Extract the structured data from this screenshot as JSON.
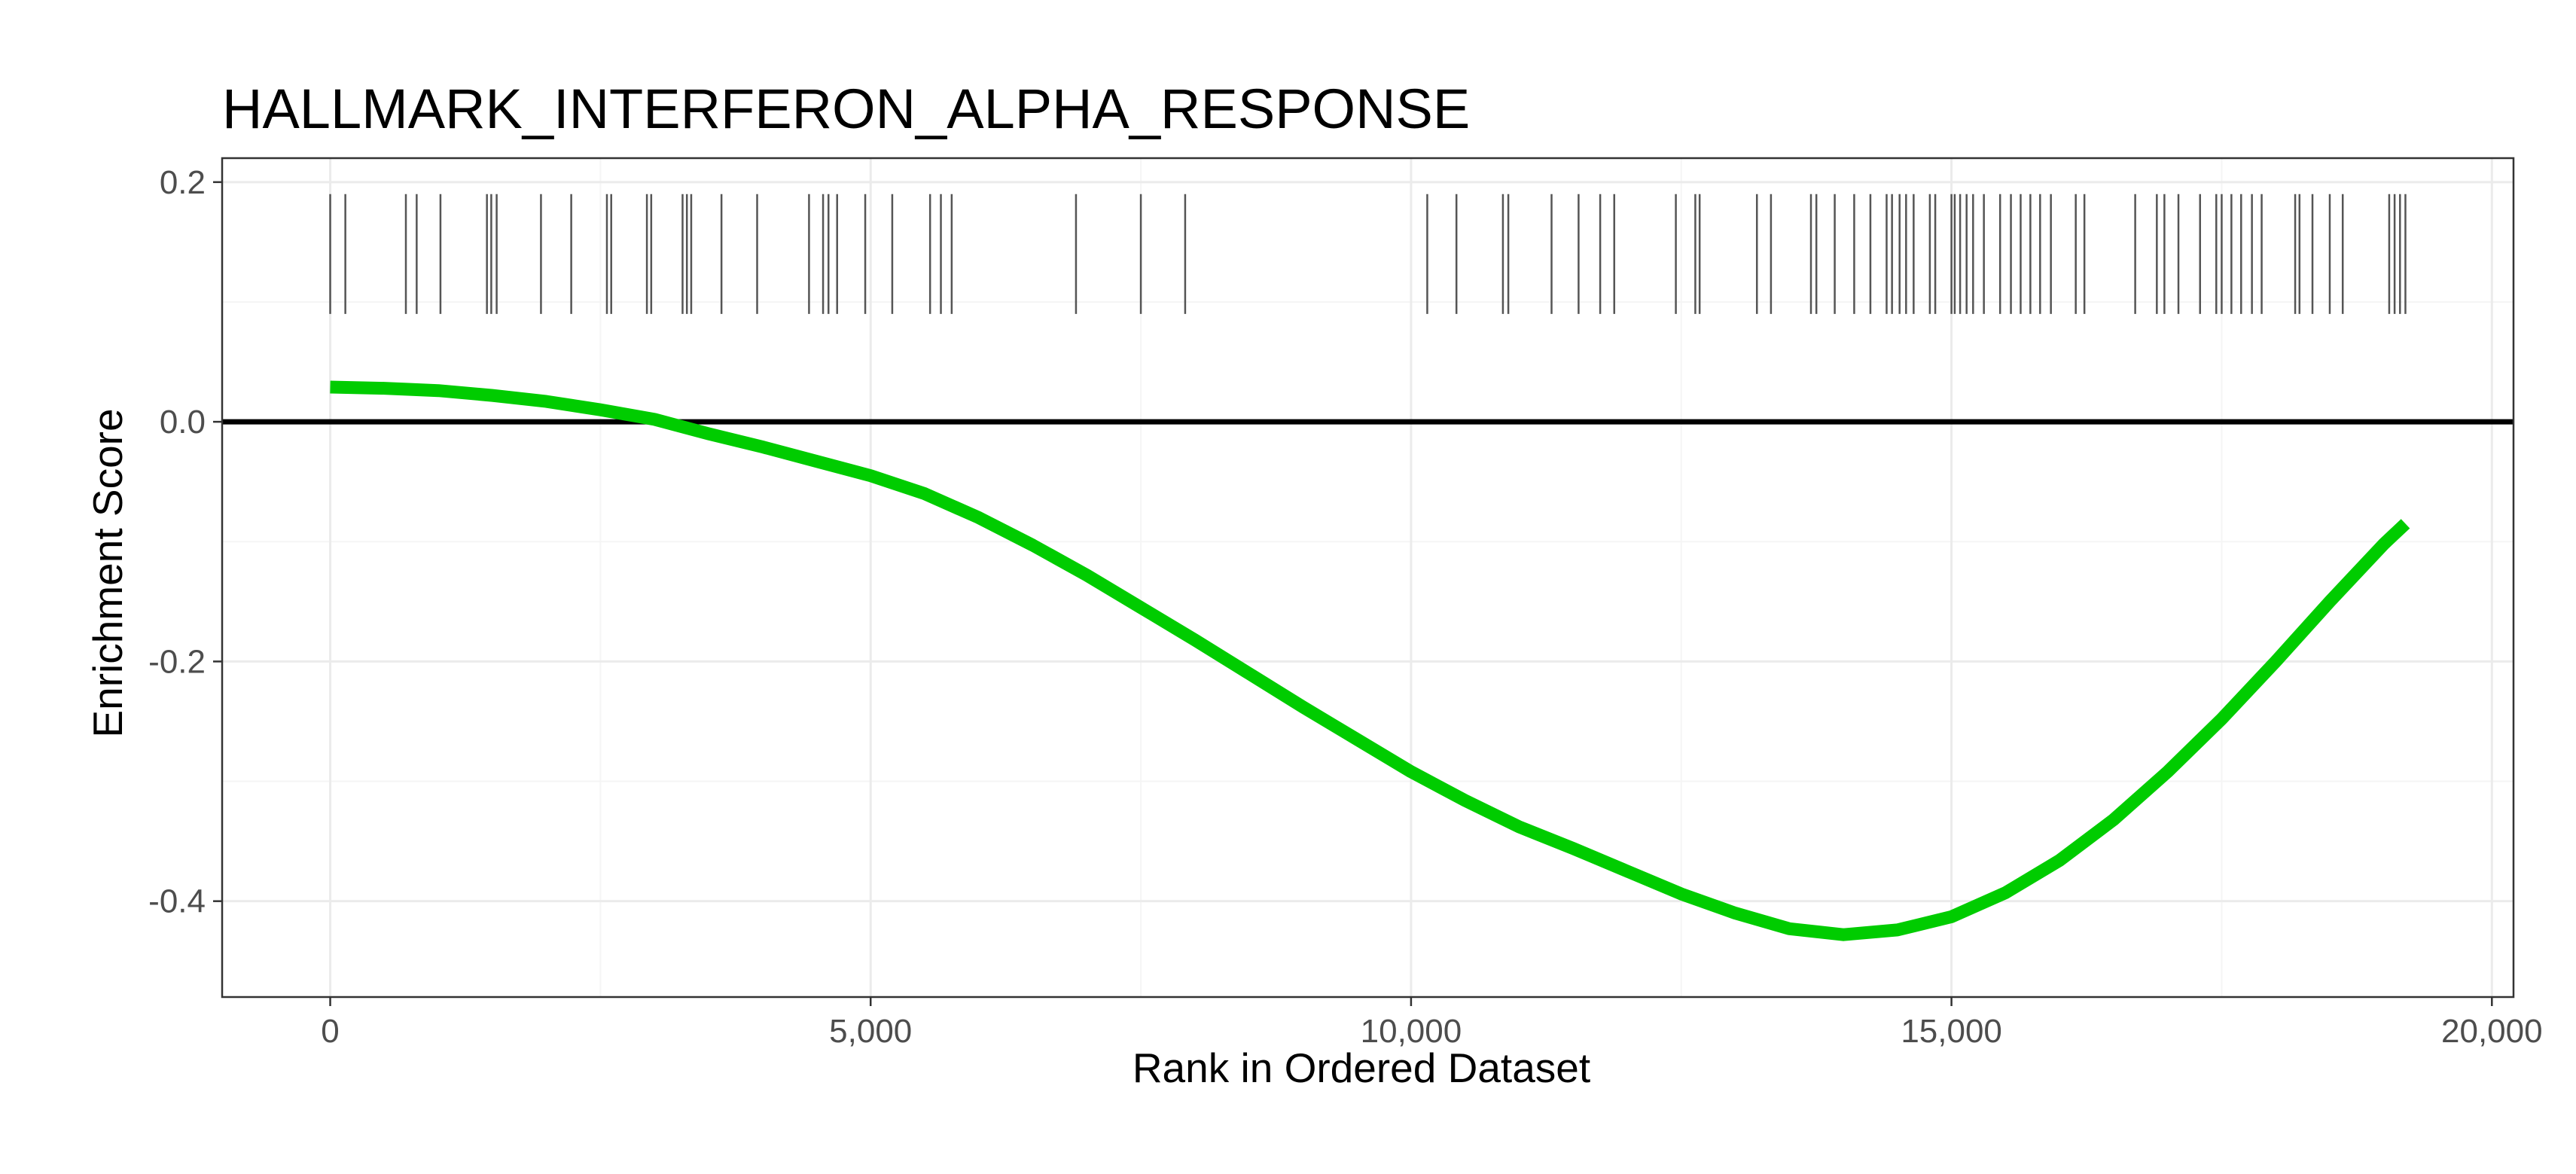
{
  "chart_data": {
    "type": "line",
    "title": "HALLMARK_INTERFERON_ALPHA_RESPONSE",
    "xlabel": "Rank in Ordered Dataset",
    "ylabel": "Enrichment Score",
    "xlim": [
      -1000,
      20200
    ],
    "ylim": [
      -0.48,
      0.22
    ],
    "x_ticks": [
      0,
      5000,
      10000,
      15000,
      20000
    ],
    "x_tick_labels": [
      "0",
      "5,000",
      "10,000",
      "15,000",
      "20,000"
    ],
    "y_ticks": [
      0.2,
      0.0,
      -0.2,
      -0.4
    ],
    "y_tick_labels": [
      "0.2",
      "0.0",
      "-0.2",
      "-0.4"
    ],
    "grid": true,
    "legend": "none",
    "colors": {
      "curve": "#00cc00",
      "zero_line": "#000000",
      "gene_hits": "#555555",
      "grid_major": "#ebebeb",
      "grid_minor": "#f5f5f5",
      "panel_border": "#333333"
    },
    "zero_line": 0.0,
    "hit_band": [
      0.09,
      0.19
    ],
    "series": [
      {
        "x": [
          0,
          500,
          1000,
          1500,
          2000,
          2500,
          3000,
          3500,
          4000,
          4500,
          5000,
          5500,
          6000,
          6500,
          7000,
          7500,
          8000,
          8500,
          9000,
          9500,
          10000,
          10500,
          11000,
          11500,
          12000,
          12500,
          13000,
          13500,
          14000,
          14500,
          15000,
          15500,
          16000,
          16500,
          17000,
          17500,
          18000,
          18500,
          19000,
          19200
        ],
        "y": [
          0.029,
          0.028,
          0.026,
          0.022,
          0.017,
          0.01,
          0.002,
          -0.01,
          -0.021,
          -0.033,
          -0.045,
          -0.06,
          -0.08,
          -0.103,
          -0.128,
          -0.155,
          -0.182,
          -0.21,
          -0.238,
          -0.265,
          -0.292,
          -0.316,
          -0.338,
          -0.356,
          -0.375,
          -0.394,
          -0.41,
          -0.423,
          -0.428,
          -0.424,
          -0.413,
          -0.393,
          -0.366,
          -0.332,
          -0.292,
          -0.248,
          -0.2,
          -0.15,
          -0.102,
          -0.085
        ]
      }
    ],
    "gene_hits": [
      0,
      140,
      700,
      800,
      1020,
      1450,
      1490,
      1540,
      1950,
      2230,
      2560,
      2600,
      2930,
      2970,
      3260,
      3300,
      3340,
      3620,
      3950,
      4430,
      4560,
      4610,
      4690,
      4950,
      5200,
      5550,
      5650,
      5750,
      6900,
      7500,
      7910,
      10150,
      10420,
      10850,
      10900,
      11300,
      11550,
      11750,
      11880,
      12450,
      12630,
      12670,
      13200,
      13330,
      13700,
      13750,
      13920,
      14100,
      14250,
      14400,
      14450,
      14520,
      14580,
      14650,
      14800,
      14850,
      15000,
      15030,
      15080,
      15140,
      15200,
      15300,
      15450,
      15550,
      15640,
      15730,
      15820,
      15920,
      16150,
      16230,
      16700,
      16900,
      16970,
      17100,
      17300,
      17450,
      17500,
      17590,
      17680,
      17780,
      17870,
      18180,
      18220,
      18340,
      18500,
      18620,
      19050,
      19100,
      19150,
      19200
    ]
  }
}
